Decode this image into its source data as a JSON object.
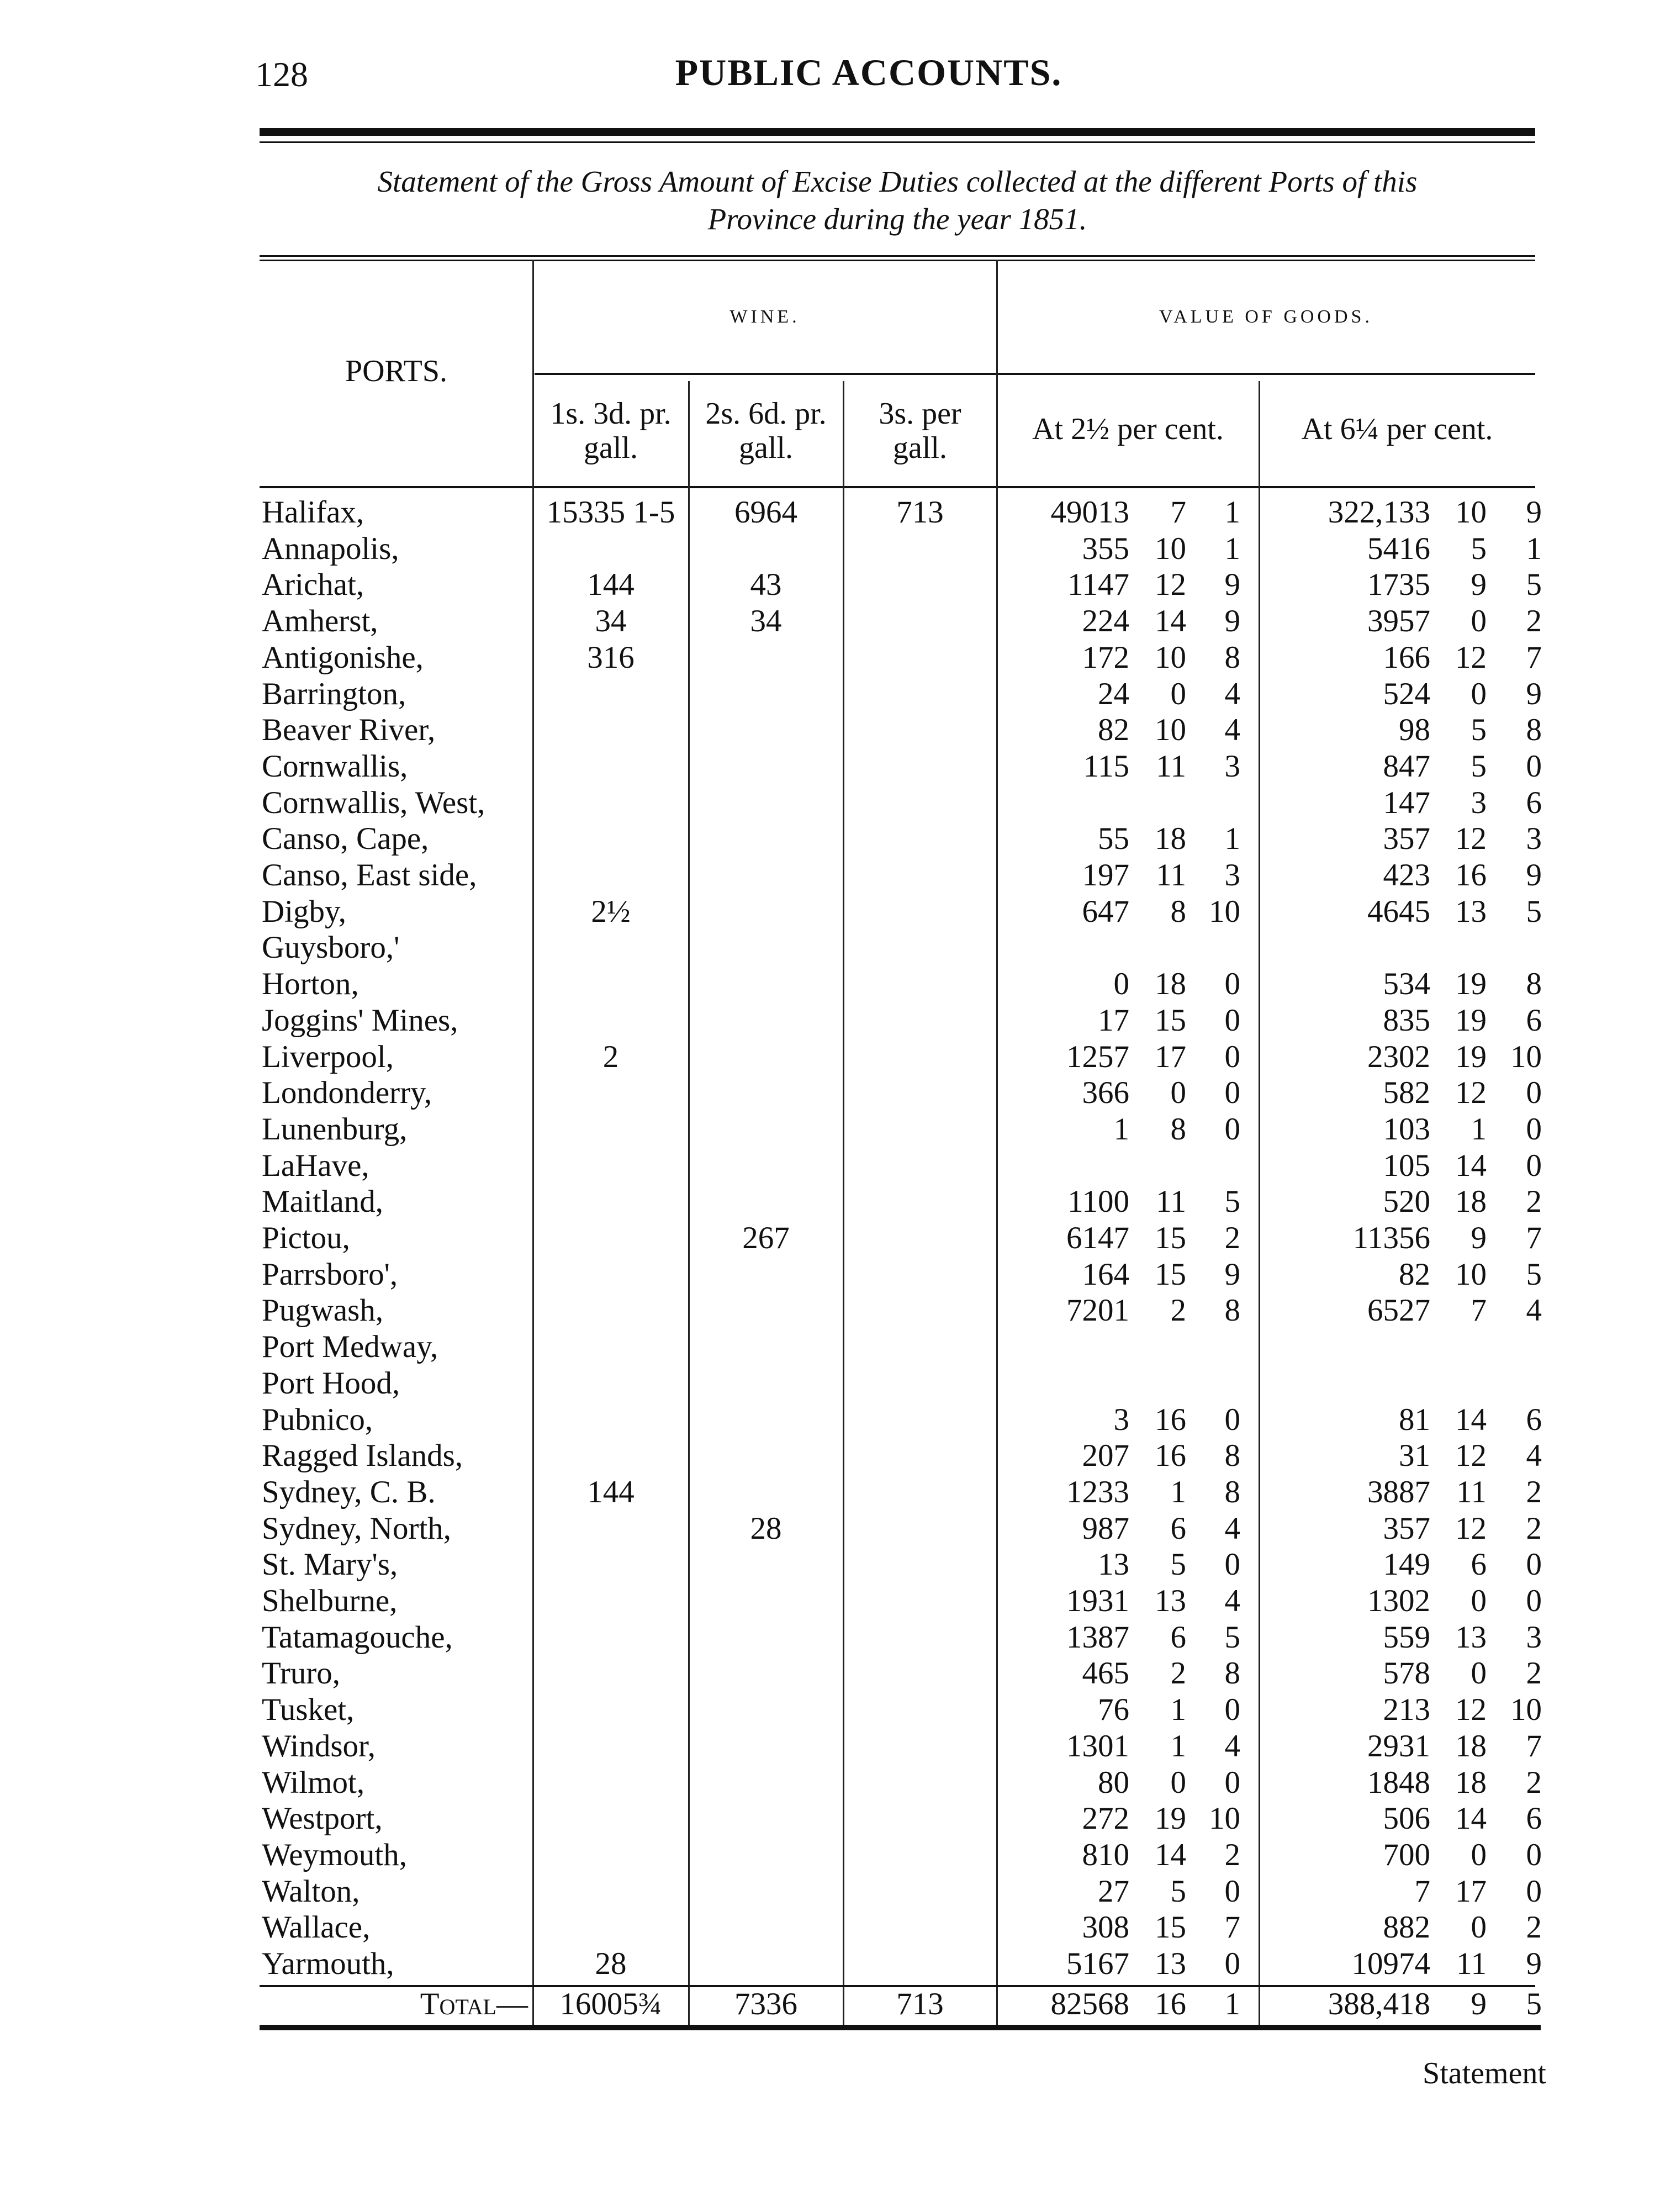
{
  "page": {
    "page_number": "128",
    "running_title": "PUBLIC ACCOUNTS.",
    "subtitle_line1": "Statement of the Gross Amount of Excise Duties collected at the different Ports of this",
    "subtitle_line2": "Province during the year 1851.",
    "catchword": "Statement"
  },
  "table": {
    "headers": {
      "ports": "PORTS.",
      "wine": "WINE.",
      "value_of_goods": "VALUE OF GOODS.",
      "wine_cols": [
        "1s. 3d. pr. gall.",
        "2s. 6d. pr. gall.",
        "3s. per gall."
      ],
      "wine_cols_l1": [
        "1s. 3d. pr.",
        "2s. 6d. pr.",
        "3s. per"
      ],
      "wine_cols_l2": [
        "gall.",
        "gall.",
        "gall."
      ],
      "goods_cols": [
        "At 2½ per cent.",
        "At 6¼ per cent."
      ]
    },
    "rows": [
      {
        "port": "Halifax,",
        "w1": "15335 1-5",
        "w2": "6964",
        "w3": "713",
        "a": [
          "49013",
          "7",
          "1"
        ],
        "b": [
          "322,133",
          "10",
          "9"
        ]
      },
      {
        "port": "Annapolis,",
        "w1": "",
        "w2": "",
        "w3": "",
        "a": [
          "355",
          "10",
          "1"
        ],
        "b": [
          "5416",
          "5",
          "1"
        ]
      },
      {
        "port": "Arichat,",
        "w1": "144",
        "w2": "43",
        "w3": "",
        "a": [
          "1147",
          "12",
          "9"
        ],
        "b": [
          "1735",
          "9",
          "5"
        ]
      },
      {
        "port": "Amherst,",
        "w1": "34",
        "w2": "34",
        "w3": "",
        "a": [
          "224",
          "14",
          "9"
        ],
        "b": [
          "3957",
          "0",
          "2"
        ]
      },
      {
        "port": "Antigonishe,",
        "w1": "316",
        "w2": "",
        "w3": "",
        "a": [
          "172",
          "10",
          "8"
        ],
        "b": [
          "166",
          "12",
          "7"
        ]
      },
      {
        "port": "Barrington,",
        "w1": "",
        "w2": "",
        "w3": "",
        "a": [
          "24",
          "0",
          "4"
        ],
        "b": [
          "524",
          "0",
          "9"
        ]
      },
      {
        "port": "Beaver River,",
        "w1": "",
        "w2": "",
        "w3": "",
        "a": [
          "82",
          "10",
          "4"
        ],
        "b": [
          "98",
          "5",
          "8"
        ]
      },
      {
        "port": "Cornwallis,",
        "w1": "",
        "w2": "",
        "w3": "",
        "a": [
          "115",
          "11",
          "3"
        ],
        "b": [
          "847",
          "5",
          "0"
        ]
      },
      {
        "port": "Cornwallis, West,",
        "w1": "",
        "w2": "",
        "w3": "",
        "a": [
          "",
          "",
          ""
        ],
        "b": [
          "147",
          "3",
          "6"
        ]
      },
      {
        "port": "Canso, Cape,",
        "w1": "",
        "w2": "",
        "w3": "",
        "a": [
          "55",
          "18",
          "1"
        ],
        "b": [
          "357",
          "12",
          "3"
        ]
      },
      {
        "port": "Canso, East side,",
        "w1": "",
        "w2": "",
        "w3": "",
        "a": [
          "197",
          "11",
          "3"
        ],
        "b": [
          "423",
          "16",
          "9"
        ]
      },
      {
        "port": "Digby,",
        "w1": "2½",
        "w2": "",
        "w3": "",
        "a": [
          "647",
          "8",
          "10"
        ],
        "b": [
          "4645",
          "13",
          "5"
        ]
      },
      {
        "port": "Guysboro,'",
        "w1": "",
        "w2": "",
        "w3": "",
        "a": [
          "",
          "",
          ""
        ],
        "b": [
          "",
          "",
          ""
        ]
      },
      {
        "port": "Horton,",
        "w1": "",
        "w2": "",
        "w3": "",
        "a": [
          "0",
          "18",
          "0"
        ],
        "b": [
          "534",
          "19",
          "8"
        ]
      },
      {
        "port": "Joggins' Mines,",
        "w1": "",
        "w2": "",
        "w3": "",
        "a": [
          "17",
          "15",
          "0"
        ],
        "b": [
          "835",
          "19",
          "6"
        ]
      },
      {
        "port": "Liverpool,",
        "w1": "2",
        "w2": "",
        "w3": "",
        "a": [
          "1257",
          "17",
          "0"
        ],
        "b": [
          "2302",
          "19",
          "10"
        ]
      },
      {
        "port": "Londonderry,",
        "w1": "",
        "w2": "",
        "w3": "",
        "a": [
          "366",
          "0",
          "0"
        ],
        "b": [
          "582",
          "12",
          "0"
        ]
      },
      {
        "port": "Lunenburg,",
        "w1": "",
        "w2": "",
        "w3": "",
        "a": [
          "1",
          "8",
          "0"
        ],
        "b": [
          "103",
          "1",
          "0"
        ]
      },
      {
        "port": "LaHave,",
        "w1": "",
        "w2": "",
        "w3": "",
        "a": [
          "",
          "",
          ""
        ],
        "b": [
          "105",
          "14",
          "0"
        ]
      },
      {
        "port": "Maitland,",
        "w1": "",
        "w2": "",
        "w3": "",
        "a": [
          "1100",
          "11",
          "5"
        ],
        "b": [
          "520",
          "18",
          "2"
        ]
      },
      {
        "port": "Pictou,",
        "w1": "",
        "w2": "267",
        "w3": "",
        "a": [
          "6147",
          "15",
          "2"
        ],
        "b": [
          "11356",
          "9",
          "7"
        ]
      },
      {
        "port": "Parrsboro',",
        "w1": "",
        "w2": "",
        "w3": "",
        "a": [
          "164",
          "15",
          "9"
        ],
        "b": [
          "82",
          "10",
          "5"
        ]
      },
      {
        "port": "Pugwash,",
        "w1": "",
        "w2": "",
        "w3": "",
        "a": [
          "7201",
          "2",
          "8"
        ],
        "b": [
          "6527",
          "7",
          "4"
        ]
      },
      {
        "port": "Port Medway,",
        "w1": "",
        "w2": "",
        "w3": "",
        "a": [
          "",
          "",
          ""
        ],
        "b": [
          "",
          "",
          ""
        ]
      },
      {
        "port": "Port Hood,",
        "w1": "",
        "w2": "",
        "w3": "",
        "a": [
          "",
          "",
          ""
        ],
        "b": [
          "",
          "",
          ""
        ]
      },
      {
        "port": "Pubnico,",
        "w1": "",
        "w2": "",
        "w3": "",
        "a": [
          "3",
          "16",
          "0"
        ],
        "b": [
          "81",
          "14",
          "6"
        ]
      },
      {
        "port": "Ragged Islands,",
        "w1": "",
        "w2": "",
        "w3": "",
        "a": [
          "207",
          "16",
          "8"
        ],
        "b": [
          "31",
          "12",
          "4"
        ]
      },
      {
        "port": "Sydney, C. B.",
        "w1": "144",
        "w2": "",
        "w3": "",
        "a": [
          "1233",
          "1",
          "8"
        ],
        "b": [
          "3887",
          "11",
          "2"
        ]
      },
      {
        "port": "Sydney, North,",
        "w1": "",
        "w2": "28",
        "w3": "",
        "a": [
          "987",
          "6",
          "4"
        ],
        "b": [
          "357",
          "12",
          "2"
        ]
      },
      {
        "port": "St. Mary's,",
        "w1": "",
        "w2": "",
        "w3": "",
        "a": [
          "13",
          "5",
          "0"
        ],
        "b": [
          "149",
          "6",
          "0"
        ]
      },
      {
        "port": "Shelburne,",
        "w1": "",
        "w2": "",
        "w3": "",
        "a": [
          "1931",
          "13",
          "4"
        ],
        "b": [
          "1302",
          "0",
          "0"
        ]
      },
      {
        "port": "Tatamagouche,",
        "w1": "",
        "w2": "",
        "w3": "",
        "a": [
          "1387",
          "6",
          "5"
        ],
        "b": [
          "559",
          "13",
          "3"
        ]
      },
      {
        "port": "Truro,",
        "w1": "",
        "w2": "",
        "w3": "",
        "a": [
          "465",
          "2",
          "8"
        ],
        "b": [
          "578",
          "0",
          "2"
        ]
      },
      {
        "port": "Tusket,",
        "w1": "",
        "w2": "",
        "w3": "",
        "a": [
          "76",
          "1",
          "0"
        ],
        "b": [
          "213",
          "12",
          "10"
        ]
      },
      {
        "port": "Windsor,",
        "w1": "",
        "w2": "",
        "w3": "",
        "a": [
          "1301",
          "1",
          "4"
        ],
        "b": [
          "2931",
          "18",
          "7"
        ]
      },
      {
        "port": "Wilmot,",
        "w1": "",
        "w2": "",
        "w3": "",
        "a": [
          "80",
          "0",
          "0"
        ],
        "b": [
          "1848",
          "18",
          "2"
        ]
      },
      {
        "port": "Westport,",
        "w1": "",
        "w2": "",
        "w3": "",
        "a": [
          "272",
          "19",
          "10"
        ],
        "b": [
          "506",
          "14",
          "6"
        ]
      },
      {
        "port": "Weymouth,",
        "w1": "",
        "w2": "",
        "w3": "",
        "a": [
          "810",
          "14",
          "2"
        ],
        "b": [
          "700",
          "0",
          "0"
        ]
      },
      {
        "port": "Walton,",
        "w1": "",
        "w2": "",
        "w3": "",
        "a": [
          "27",
          "5",
          "0"
        ],
        "b": [
          "7",
          "17",
          "0"
        ]
      },
      {
        "port": "Wallace,",
        "w1": "",
        "w2": "",
        "w3": "",
        "a": [
          "308",
          "15",
          "7"
        ],
        "b": [
          "882",
          "0",
          "2"
        ]
      },
      {
        "port": "Yarmouth,",
        "w1": "28",
        "w2": "",
        "w3": "",
        "a": [
          "5167",
          "13",
          "0"
        ],
        "b": [
          "10974",
          "11",
          "9"
        ]
      }
    ],
    "total": {
      "label": "Total—",
      "w1": "16005¾",
      "w2": "7336",
      "w3": "713",
      "a": [
        "82568",
        "16",
        "1"
      ],
      "b": [
        "388,418",
        "9",
        "5"
      ]
    }
  }
}
